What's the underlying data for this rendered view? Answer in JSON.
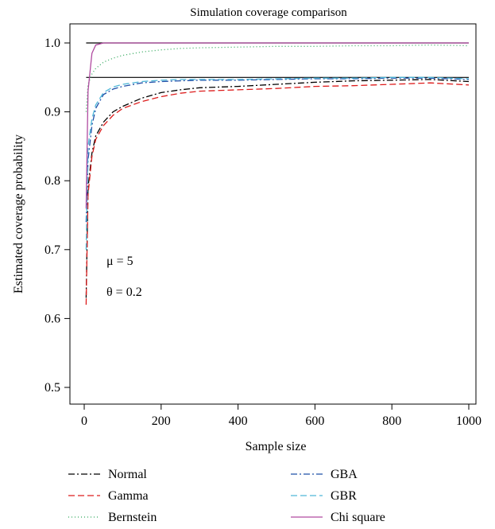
{
  "chart_data": {
    "type": "line",
    "title": "Simulation coverage comparison",
    "xlabel": "Sample size",
    "ylabel": "Estimated coverage probability",
    "xlim": [
      0,
      1000
    ],
    "ylim": [
      0.5,
      1.0
    ],
    "x_ticks": [
      "0",
      "200",
      "400",
      "600",
      "800",
      "1000"
    ],
    "y_ticks": [
      "0.5",
      "0.6",
      "0.7",
      "0.8",
      "0.9",
      "1.0"
    ],
    "grid": false,
    "legend_position": "bottom",
    "annotations": [
      "μ = 5",
      "θ = 0.2"
    ],
    "reference_lines": [
      1.0,
      0.95
    ],
    "x": [
      5,
      10,
      20,
      30,
      50,
      75,
      100,
      150,
      200,
      250,
      300,
      400,
      500,
      600,
      700,
      800,
      900,
      1000
    ],
    "series": [
      {
        "name": "Normal",
        "color": "#000000",
        "dash": "8,3,2,3",
        "values": [
          0.63,
          0.79,
          0.84,
          0.865,
          0.885,
          0.9,
          0.908,
          0.92,
          0.928,
          0.932,
          0.935,
          0.937,
          0.94,
          0.943,
          0.945,
          0.946,
          0.947,
          0.944
        ]
      },
      {
        "name": "Gamma",
        "color": "#dd1c1c",
        "dash": "8,4",
        "values": [
          0.62,
          0.78,
          0.835,
          0.86,
          0.88,
          0.895,
          0.905,
          0.915,
          0.922,
          0.927,
          0.93,
          0.932,
          0.934,
          0.937,
          0.938,
          0.94,
          0.942,
          0.939
        ]
      },
      {
        "name": "Bernstein",
        "color": "#2fa85a",
        "dash": "1,3",
        "values": [
          0.9,
          0.94,
          0.955,
          0.963,
          0.972,
          0.978,
          0.982,
          0.987,
          0.99,
          0.992,
          0.993,
          0.994,
          0.995,
          0.995,
          0.996,
          0.996,
          0.997,
          0.996
        ]
      },
      {
        "name": "GBA",
        "color": "#1f4fa8",
        "dash": "8,3,2,3",
        "values": [
          0.74,
          0.83,
          0.88,
          0.905,
          0.925,
          0.933,
          0.937,
          0.942,
          0.944,
          0.945,
          0.946,
          0.946,
          0.947,
          0.948,
          0.948,
          0.949,
          0.949,
          0.947
        ]
      },
      {
        "name": "GBR",
        "color": "#4fb8d8",
        "dash": "8,4",
        "values": [
          0.7,
          0.85,
          0.89,
          0.91,
          0.928,
          0.936,
          0.94,
          0.944,
          0.946,
          0.947,
          0.947,
          0.947,
          0.948,
          0.949,
          0.949,
          0.95,
          0.95,
          0.948
        ]
      },
      {
        "name": "Chi square",
        "color": "#b04aa0",
        "dash": "",
        "values": [
          0.76,
          0.93,
          0.985,
          0.997,
          1.0,
          1.0,
          1.0,
          1.0,
          1.0,
          1.0,
          1.0,
          1.0,
          1.0,
          1.0,
          1.0,
          1.0,
          1.0,
          1.0
        ]
      }
    ]
  }
}
